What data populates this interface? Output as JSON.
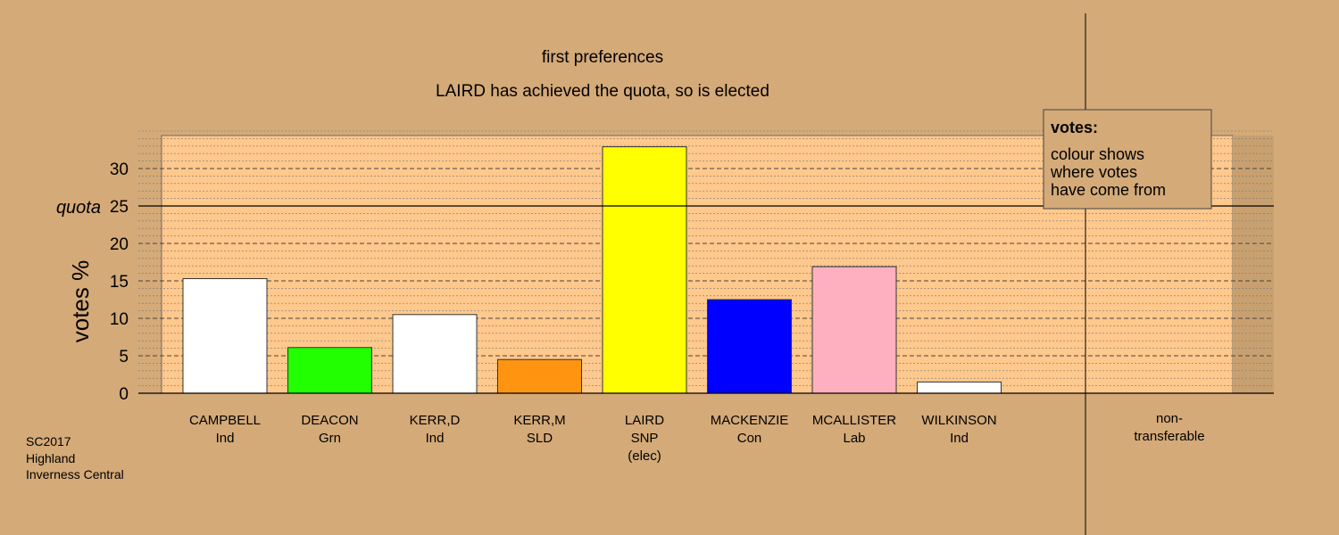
{
  "chart_data": {
    "type": "bar",
    "title": "first preferences",
    "subtitle": "LAIRD has achieved the quota, so is elected",
    "ylabel": "votes %",
    "ylim": [
      0,
      35
    ],
    "yticks": [
      0,
      5,
      10,
      15,
      20,
      25,
      30
    ],
    "quota": {
      "label": "quota",
      "value": 25
    },
    "categories": [
      {
        "name": "CAMPBELL",
        "party": "Ind",
        "note": "",
        "value": 15.3,
        "color": "#ffffff"
      },
      {
        "name": "DEACON",
        "party": "Grn",
        "note": "",
        "value": 6.1,
        "color": "#22ff00"
      },
      {
        "name": "KERR,D",
        "party": "Ind",
        "note": "",
        "value": 10.5,
        "color": "#ffffff"
      },
      {
        "name": "KERR,M",
        "party": "SLD",
        "note": "",
        "value": 4.5,
        "color": "#ff9410"
      },
      {
        "name": "LAIRD",
        "party": "SNP",
        "note": "(elec)",
        "value": 32.9,
        "color": "#ffff00"
      },
      {
        "name": "MACKENZIE",
        "party": "Con",
        "note": "",
        "value": 12.5,
        "color": "#0000ff"
      },
      {
        "name": "MCALLISTER",
        "party": "Lab",
        "note": "",
        "value": 16.9,
        "color": "#ffb0c0"
      },
      {
        "name": "WILKINSON",
        "party": "Ind",
        "note": "",
        "value": 1.5,
        "color": "#ffffff"
      }
    ],
    "non_transferable": {
      "label_line1": "non-",
      "label_line2": "transferable",
      "value": 0
    },
    "legend": {
      "position": "top-right",
      "title": "votes:",
      "lines": [
        "colour shows",
        "where votes",
        "have come from"
      ]
    },
    "grid": true
  },
  "footer": {
    "line1": "SC2017",
    "line2": "Highland",
    "line3": "Inverness Central"
  },
  "colors": {
    "background": "#d4aa78",
    "plot_area": "#ffc88c",
    "right_band": "#c8a070",
    "legend_fill": "#d4aa78"
  }
}
